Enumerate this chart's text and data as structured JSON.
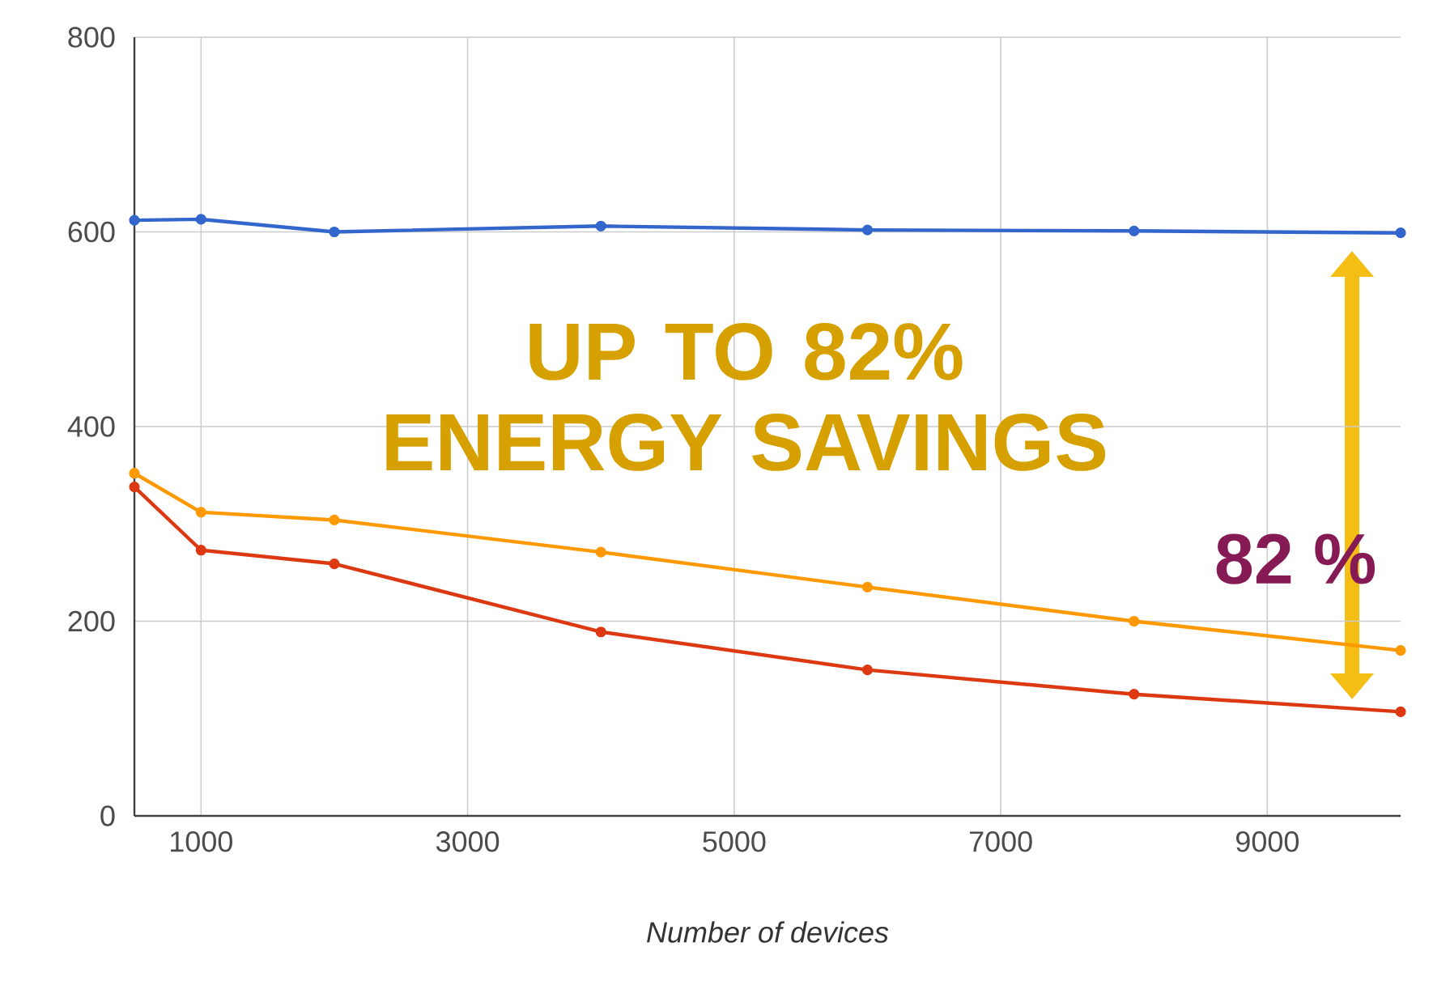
{
  "chart_data": {
    "type": "line",
    "xlabel": "Number of devices",
    "x": [
      500,
      1000,
      2000,
      4000,
      6000,
      8000,
      10000
    ],
    "series": [
      {
        "color": "#3366cc",
        "values": [
          612,
          613,
          600,
          606,
          602,
          601,
          599
        ]
      },
      {
        "color": "#ff9900",
        "values": [
          352,
          312,
          304,
          271,
          235,
          200,
          170
        ]
      },
      {
        "color": "#dc3912",
        "values": [
          338,
          273,
          259,
          189,
          150,
          125,
          107
        ]
      }
    ],
    "xlim": [
      500,
      10000
    ],
    "ylim": [
      0,
      800
    ],
    "xticks": [
      1000,
      3000,
      5000,
      7000,
      9000
    ],
    "yticks": [
      0,
      200,
      400,
      600,
      800
    ],
    "grid": true,
    "marker": "circle",
    "line_style": "solid",
    "annotations": [
      "UP TO 82% ENERGY SAVINGS",
      "82 %"
    ]
  }
}
